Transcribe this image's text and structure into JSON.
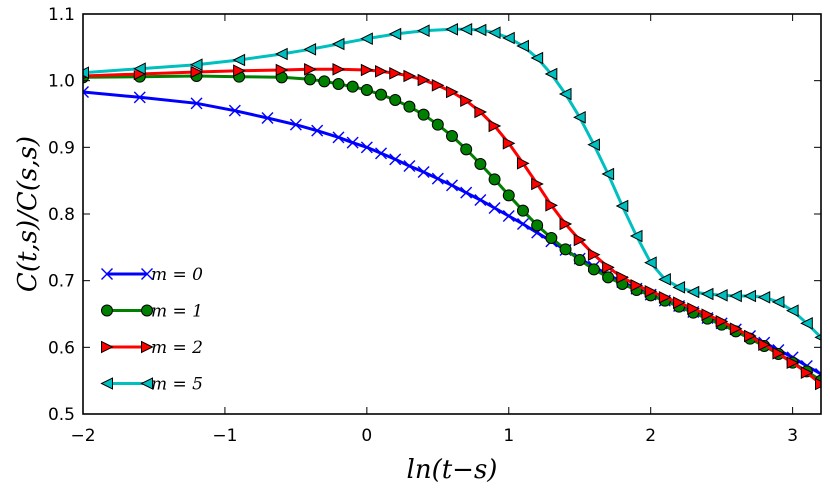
{
  "chart_data": {
    "type": "line",
    "title": "",
    "xlabel": "ln(t−s)",
    "ylabel": "C(t,s)/C(s,s)",
    "xlim": [
      -2,
      3.2
    ],
    "ylim": [
      0.5,
      1.1
    ],
    "xticks": [
      -2,
      -1,
      0,
      1,
      2,
      3
    ],
    "xtick_labels": [
      "−2",
      "−1",
      "0",
      "1",
      "2",
      "3"
    ],
    "yticks": [
      0.5,
      0.6,
      0.7,
      0.8,
      0.9,
      1.0,
      1.1
    ],
    "ytick_labels": [
      "0.5",
      "0.6",
      "0.7",
      "0.8",
      "0.9",
      "1.0",
      "1.1"
    ],
    "grid": false,
    "legend_position": "lower-left",
    "series": [
      {
        "name": "m = 0",
        "color": "#0000ff",
        "marker": "x",
        "x": [
          -2.0,
          -1.6,
          -1.2,
          -0.93,
          -0.7,
          -0.5,
          -0.35,
          -0.2,
          -0.1,
          0.0,
          0.1,
          0.2,
          0.3,
          0.4,
          0.5,
          0.6,
          0.7,
          0.8,
          0.9,
          1.0,
          1.1,
          1.2,
          1.3,
          1.4,
          1.5,
          1.6,
          1.7,
          1.8,
          1.9,
          2.0,
          2.1,
          2.2,
          2.3,
          2.4,
          2.5,
          2.6,
          2.7,
          2.8,
          2.9,
          3.0,
          3.1,
          3.2
        ],
        "y": [
          0.983,
          0.975,
          0.966,
          0.955,
          0.944,
          0.934,
          0.925,
          0.915,
          0.907,
          0.9,
          0.891,
          0.882,
          0.872,
          0.863,
          0.853,
          0.843,
          0.832,
          0.821,
          0.809,
          0.797,
          0.785,
          0.772,
          0.759,
          0.746,
          0.733,
          0.721,
          0.709,
          0.698,
          0.688,
          0.679,
          0.67,
          0.662,
          0.653,
          0.644,
          0.636,
          0.627,
          0.617,
          0.607,
          0.596,
          0.585,
          0.572,
          0.56
        ]
      },
      {
        "name": "m = 1",
        "color": "#008000",
        "marker": "circle",
        "x": [
          -2.0,
          -1.6,
          -1.2,
          -0.9,
          -0.6,
          -0.4,
          -0.3,
          -0.2,
          -0.1,
          0.0,
          0.1,
          0.2,
          0.3,
          0.4,
          0.5,
          0.6,
          0.7,
          0.8,
          0.9,
          1.0,
          1.1,
          1.2,
          1.3,
          1.4,
          1.5,
          1.6,
          1.7,
          1.8,
          1.9,
          2.0,
          2.1,
          2.2,
          2.3,
          2.4,
          2.5,
          2.6,
          2.7,
          2.8,
          2.9,
          3.0,
          3.1,
          3.2
        ],
        "y": [
          1.005,
          1.006,
          1.007,
          1.006,
          1.005,
          1.002,
          0.999,
          0.995,
          0.991,
          0.986,
          0.979,
          0.971,
          0.961,
          0.949,
          0.934,
          0.917,
          0.897,
          0.875,
          0.852,
          0.828,
          0.805,
          0.783,
          0.764,
          0.747,
          0.731,
          0.717,
          0.705,
          0.695,
          0.686,
          0.678,
          0.67,
          0.661,
          0.652,
          0.643,
          0.634,
          0.624,
          0.613,
          0.602,
          0.59,
          0.577,
          0.564,
          0.55
        ]
      },
      {
        "name": "m = 2",
        "color": "#ff0000",
        "marker": "triangle-right",
        "x": [
          -2.0,
          -1.6,
          -1.2,
          -0.9,
          -0.6,
          -0.4,
          -0.2,
          0.0,
          0.1,
          0.2,
          0.3,
          0.4,
          0.5,
          0.6,
          0.7,
          0.8,
          0.9,
          1.0,
          1.1,
          1.2,
          1.3,
          1.4,
          1.5,
          1.6,
          1.7,
          1.8,
          1.9,
          2.0,
          2.1,
          2.2,
          2.3,
          2.4,
          2.5,
          2.6,
          2.7,
          2.8,
          2.9,
          3.0,
          3.1,
          3.2
        ],
        "y": [
          1.007,
          1.01,
          1.013,
          1.015,
          1.016,
          1.017,
          1.017,
          1.016,
          1.014,
          1.011,
          1.007,
          1.001,
          0.993,
          0.983,
          0.97,
          0.953,
          0.932,
          0.906,
          0.876,
          0.845,
          0.813,
          0.785,
          0.761,
          0.739,
          0.72,
          0.705,
          0.693,
          0.684,
          0.675,
          0.667,
          0.658,
          0.649,
          0.639,
          0.628,
          0.617,
          0.604,
          0.591,
          0.577,
          0.562,
          0.545
        ]
      },
      {
        "name": "m = 5",
        "color": "#00bfbf",
        "marker": "triangle-left",
        "x": [
          -2.0,
          -1.6,
          -1.2,
          -0.9,
          -0.6,
          -0.4,
          -0.2,
          0.0,
          0.2,
          0.4,
          0.6,
          0.7,
          0.8,
          0.9,
          1.0,
          1.1,
          1.2,
          1.3,
          1.4,
          1.5,
          1.6,
          1.7,
          1.8,
          1.9,
          2.0,
          2.1,
          2.2,
          2.3,
          2.4,
          2.5,
          2.6,
          2.7,
          2.8,
          2.9,
          3.0,
          3.1,
          3.2
        ],
        "y": [
          1.012,
          1.018,
          1.024,
          1.031,
          1.04,
          1.047,
          1.055,
          1.063,
          1.07,
          1.075,
          1.077,
          1.077,
          1.076,
          1.072,
          1.064,
          1.052,
          1.034,
          1.01,
          0.98,
          0.945,
          0.904,
          0.86,
          0.812,
          0.767,
          0.727,
          0.702,
          0.69,
          0.683,
          0.68,
          0.678,
          0.677,
          0.677,
          0.675,
          0.668,
          0.655,
          0.636,
          0.615
        ]
      }
    ]
  }
}
